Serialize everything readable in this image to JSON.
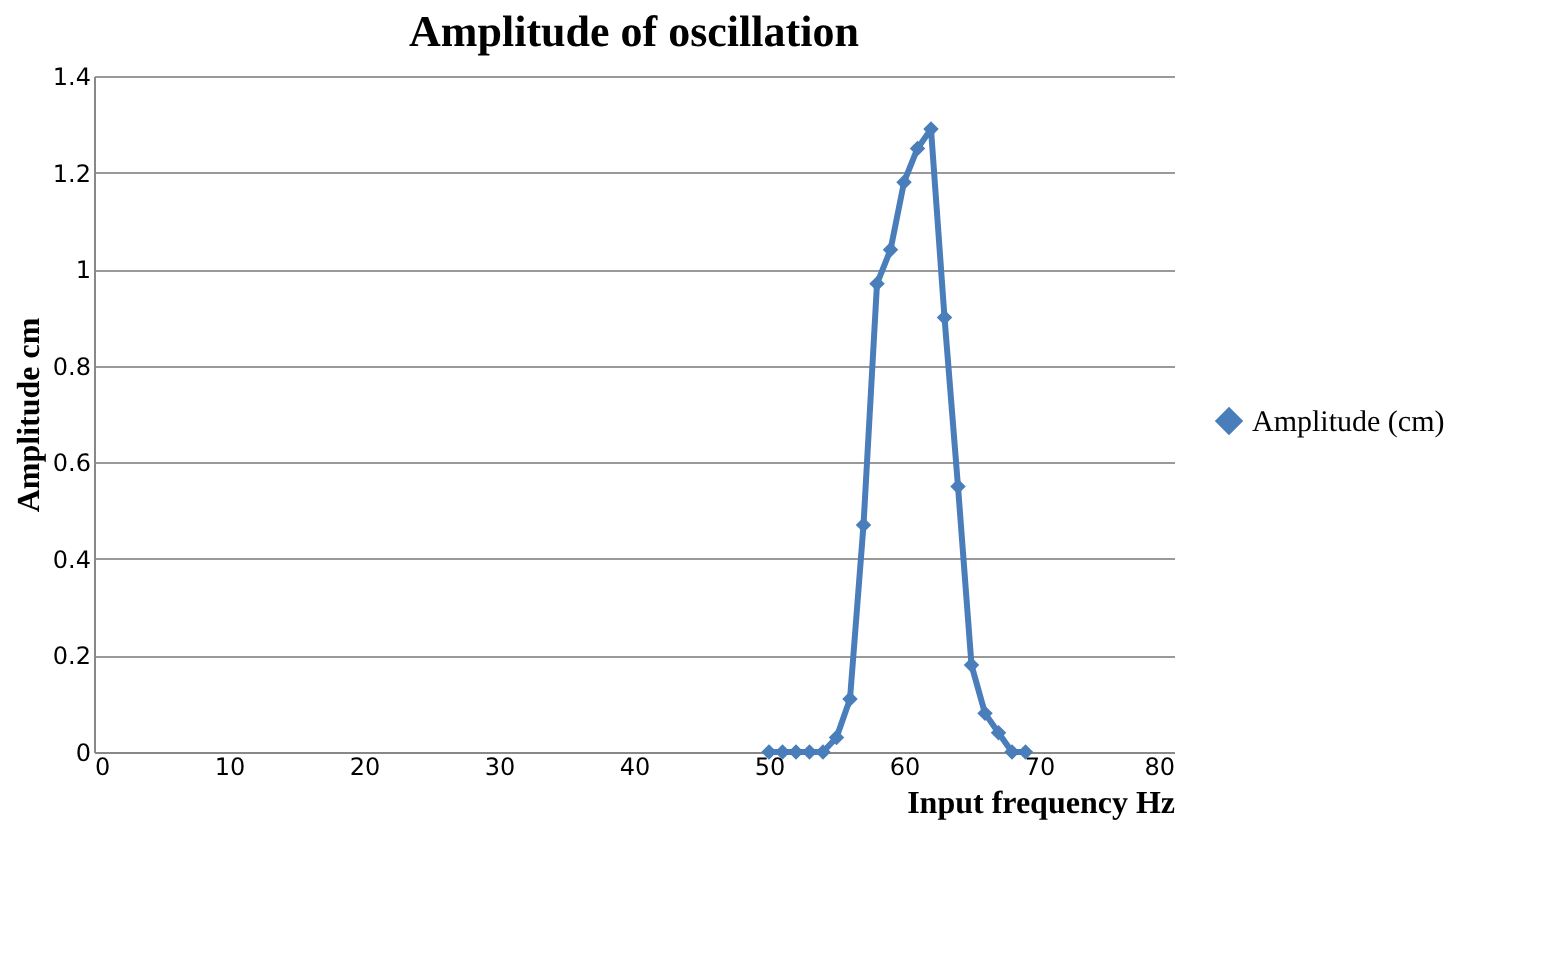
{
  "chart_data": {
    "type": "line",
    "title": "Amplitude of oscillation",
    "xlabel": "Input frequency Hz",
    "ylabel": "Amplitude cm",
    "x": [
      50,
      51,
      52,
      53,
      54,
      55,
      56,
      57,
      58,
      59,
      60,
      61,
      62,
      63,
      64,
      65,
      66,
      67,
      68,
      69
    ],
    "series": [
      {
        "name": "Amplitude (cm)",
        "color": "#4a7ebb",
        "values": [
          0,
          0,
          0,
          0,
          0,
          0.03,
          0.11,
          0.47,
          0.97,
          1.04,
          1.18,
          1.25,
          1.29,
          0.9,
          0.55,
          0.18,
          0.08,
          0.04,
          0,
          0
        ]
      }
    ],
    "xlim": [
      0,
      80
    ],
    "xticks": [
      0,
      10,
      20,
      30,
      40,
      50,
      60,
      70,
      80
    ],
    "ylim": [
      0,
      1.4
    ],
    "yticks": [
      0,
      0.2,
      0.4,
      0.6,
      0.8,
      1,
      1.2,
      1.4
    ],
    "grid": "y",
    "legend": "right",
    "marker": "diamond",
    "line_style": "solid"
  }
}
